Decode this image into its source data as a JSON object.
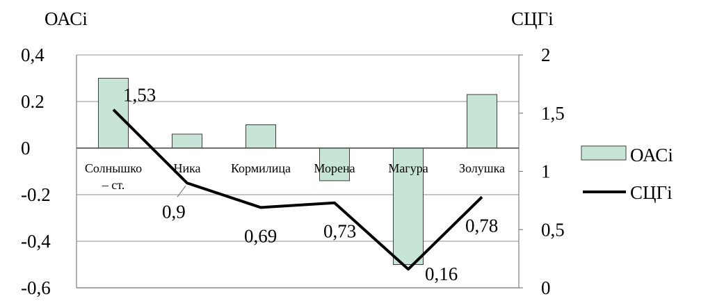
{
  "chart_data": {
    "type": "bar+line",
    "categories": [
      [
        "Солнышко",
        "– ст."
      ],
      [
        "Ника"
      ],
      [
        "Кормилица"
      ],
      [
        "Морена"
      ],
      [
        "Магура"
      ],
      [
        "Золушка"
      ]
    ],
    "series": [
      {
        "name": "ОАСі",
        "type": "bar",
        "axis": "left",
        "values": [
          0.3,
          0.06,
          0.1,
          -0.14,
          -0.5,
          0.23
        ],
        "color": "#c6e5d6",
        "stroke": "#3d3d3d"
      },
      {
        "name": "СЦГі",
        "type": "line",
        "axis": "right",
        "values": [
          1.53,
          0.9,
          0.69,
          0.73,
          0.16,
          0.78
        ],
        "data_labels": [
          "1,53",
          "0,9",
          "0,69",
          "0,73",
          "0,16",
          "0,78"
        ],
        "color": "#000000"
      }
    ],
    "left_axis": {
      "title": "ОАСі",
      "min": -0.6,
      "max": 0.4,
      "ticks": [
        0.4,
        0.2,
        0,
        -0.2,
        -0.4,
        -0.6
      ],
      "tick_labels": [
        "0,4",
        "0.2",
        "0",
        "-0.2",
        "-0,4",
        "-0,6"
      ]
    },
    "right_axis": {
      "title": "СЦГі",
      "min": 0,
      "max": 2,
      "ticks": [
        2,
        1.5,
        1,
        0.5,
        0
      ],
      "tick_labels": [
        "2",
        "1,5",
        "1",
        "0,5",
        "0"
      ]
    },
    "grid": "horizontal",
    "legend": {
      "position": "right",
      "entries": [
        "ОАСі",
        "СЦГі"
      ]
    }
  }
}
